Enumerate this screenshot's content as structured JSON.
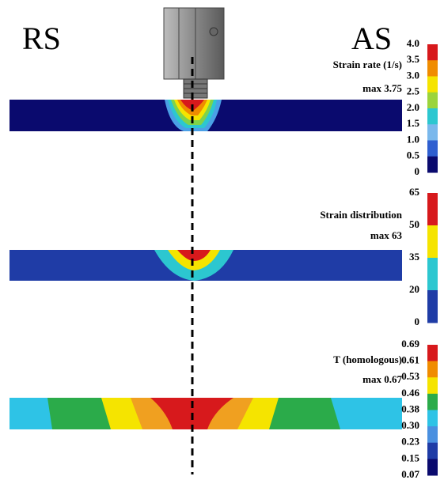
{
  "labels": {
    "left": "RS",
    "right": "AS"
  },
  "panels": [
    {
      "title": "Strain rate (1/s)",
      "max": "max 3.75",
      "scale": [
        "4.0",
        "3.5",
        "3.0",
        "2.5",
        "2.0",
        "1.5",
        "1.0",
        "0.5",
        "0"
      ]
    },
    {
      "title": "Strain distribution",
      "max": "max 63",
      "scale": [
        "65",
        "50",
        "35",
        "20",
        "0"
      ]
    },
    {
      "title": "T (homologous)",
      "max": "max 0.67",
      "scale": [
        "0.69",
        "0.61",
        "0.53",
        "0.46",
        "0.38",
        "0.30",
        "0.23",
        "0.15",
        "0.07"
      ]
    }
  ]
}
